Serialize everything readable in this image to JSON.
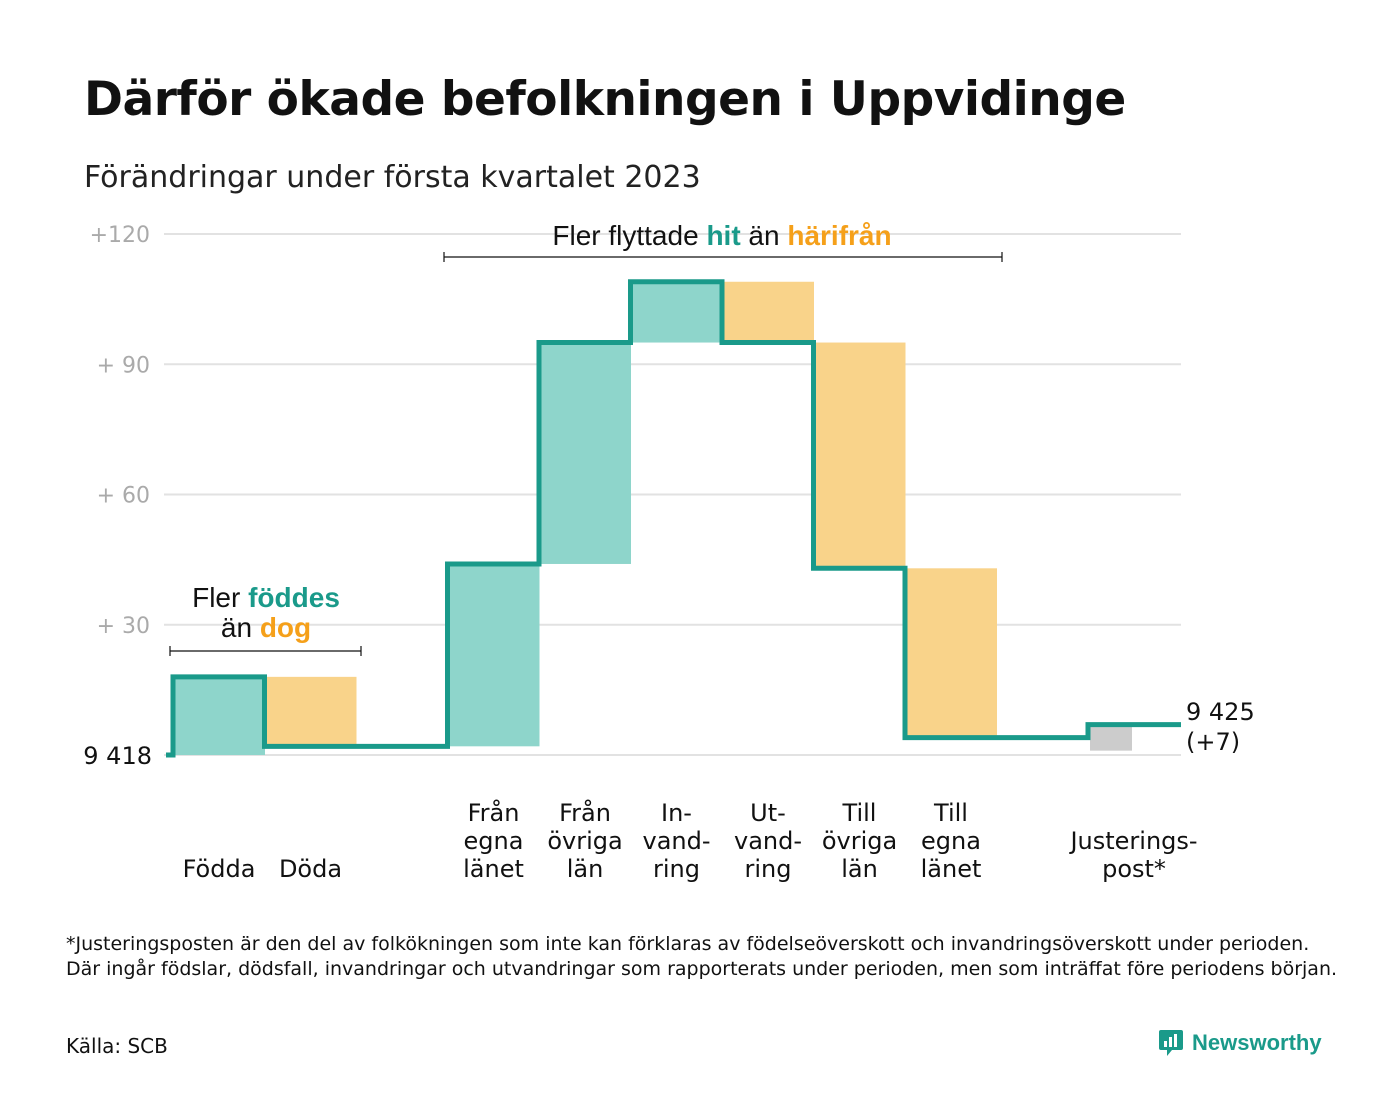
{
  "title": "Därför ökade befolkningen i Uppvidinge",
  "subtitle": "Förändringar under första kvartalet 2023",
  "footnote": "*Justeringsposten är den del av folkökningen som inte kan förklaras av födelseöverskott och invandringsöverskott under perioden. Där ingår födslar, dödsfall, invandringar och utvandringar som rapporterats under perioden, men som inträffat före periodens början.",
  "source": "Källa: SCB",
  "logo": {
    "text": "Newsworthy"
  },
  "colors": {
    "increase": "#8ed5cb",
    "decrease": "#f9d38a",
    "adjustment": "#cccccc",
    "line": "#1a9a8a",
    "teal_text": "#1a9a8a",
    "orange_text": "#f5a01a",
    "grid": "#e2e2e2",
    "tick_text": "#aaaaaa"
  },
  "chart_data": {
    "type": "waterfall",
    "start_label": "9 418",
    "end_label_line1": "9 425",
    "end_label_line2": "(+7)",
    "ylim": [
      0,
      120
    ],
    "yticks": [
      {
        "value": 30,
        "label": "+ 30"
      },
      {
        "value": 60,
        "label": "+ 60"
      },
      {
        "value": 90,
        "label": "+ 90"
      },
      {
        "value": 120,
        "label": "+120"
      }
    ],
    "grid": true,
    "steps": [
      {
        "label_lines": [
          "Födda"
        ],
        "change": 18,
        "kind": "increase"
      },
      {
        "label_lines": [
          "Döda"
        ],
        "change": -16,
        "kind": "decrease"
      },
      {
        "label_lines": [],
        "change": 0,
        "kind": "gap"
      },
      {
        "label_lines": [
          "Från",
          "egna",
          "länet"
        ],
        "change": 42,
        "kind": "increase"
      },
      {
        "label_lines": [
          "Från",
          "övriga",
          "län"
        ],
        "change": 51,
        "kind": "increase"
      },
      {
        "label_lines": [
          "In-",
          "vand-",
          "ring"
        ],
        "change": 14,
        "kind": "increase"
      },
      {
        "label_lines": [
          "Ut-",
          "vand-",
          "ring"
        ],
        "change": -14,
        "kind": "decrease"
      },
      {
        "label_lines": [
          "Till",
          "övriga",
          "län"
        ],
        "change": -52,
        "kind": "decrease"
      },
      {
        "label_lines": [
          "Till",
          "egna",
          "länet"
        ],
        "change": -39,
        "kind": "decrease"
      },
      {
        "label_lines": [],
        "change": 0,
        "kind": "gap"
      },
      {
        "label_lines": [
          "Justerings-",
          "post*"
        ],
        "change": 3,
        "kind": "adjustment"
      }
    ],
    "final_value": 7,
    "annotations": [
      {
        "id": "birth",
        "line1_text": "Fler ",
        "line1_teal": "föddes",
        "line2_text": "än ",
        "line2_orange": "dog"
      },
      {
        "id": "migration",
        "text_a": "Fler flyttade ",
        "teal": "hit",
        "text_b": " än ",
        "orange": "härifrån"
      }
    ]
  }
}
